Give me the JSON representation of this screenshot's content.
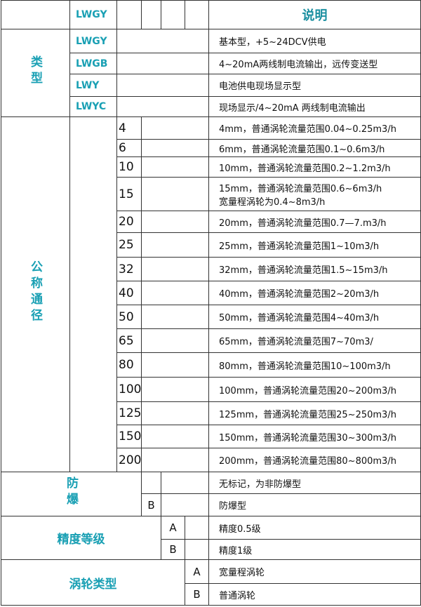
{
  "header": {
    "code": "LWGY",
    "desc": "说明"
  },
  "type": {
    "label": "类型",
    "rows": [
      {
        "code": "LWGY",
        "desc": "基本型，+5~24DCV供电"
      },
      {
        "code": "LWGB",
        "desc": "4~20mA两线制电流输出，远传变送型"
      },
      {
        "code": "LWY",
        "desc": "电池供电现场显示型"
      },
      {
        "code": "LWYC",
        "desc": "现场显示/4~20mA 两线制电流输出"
      }
    ]
  },
  "diameter": {
    "label": "公称通径",
    "rows": [
      {
        "dn": "4",
        "desc": "4mm，普通涡轮流量范围0.04~0.25m3/h"
      },
      {
        "dn": "6",
        "desc": "6mm，普通涡轮流量范围0.1~0.6m3/h"
      },
      {
        "dn": "10",
        "desc": "10mm，普通涡轮流量范围0.2~1.2m3/h"
      },
      {
        "dn": "15",
        "desc": "15mm，普通涡轮流量范围0.6~6m3/h",
        "desc2": "宽量程涡轮为0.4~8m3/h"
      },
      {
        "dn": "20",
        "desc": "20mm，普通涡轮流量范围0.7—7.m3/h"
      },
      {
        "dn": "25",
        "desc": "25mm，普通涡轮流量范围1~10m3/h"
      },
      {
        "dn": "32",
        "desc": "32mm，普通涡轮流量范围1.5~15m3/h"
      },
      {
        "dn": "40",
        "desc": "40mm，普通涡轮流量范围2~20m3/h"
      },
      {
        "dn": "50",
        "desc": "50mm，普通涡轮流量范围4~40m3/h"
      },
      {
        "dn": "65",
        "desc": "65mm，普通涡轮流量范围7~70m3/"
      },
      {
        "dn": "80",
        "desc": "80mm，普通涡轮流量范围10~100m3/h"
      },
      {
        "dn": "100",
        "desc": "100mm，普通涡轮流量范围20~200m3/h"
      },
      {
        "dn": "125",
        "desc": "125mm，普通涡轮流量范围25~250m3/h"
      },
      {
        "dn": "150",
        "desc": "150mm，普通涡轮流量范围30~300m3/h"
      },
      {
        "dn": "200",
        "desc": "200mm，普通涡轮流量范围80~800m3/h"
      }
    ]
  },
  "explosion": {
    "label": "防爆",
    "rows": [
      {
        "code": "",
        "desc": "无标记，为非防爆型"
      },
      {
        "code": "B",
        "desc": "防爆型"
      }
    ]
  },
  "accuracy": {
    "label": "精度等级",
    "rows": [
      {
        "code": "A",
        "desc": "精度0.5级"
      },
      {
        "code": "B",
        "desc": "精度1级"
      }
    ]
  },
  "turbine": {
    "label": "涡轮类型",
    "rows": [
      {
        "code": "A",
        "desc": "宽量程涡轮"
      },
      {
        "code": "B",
        "desc": "普通涡轮"
      }
    ]
  }
}
